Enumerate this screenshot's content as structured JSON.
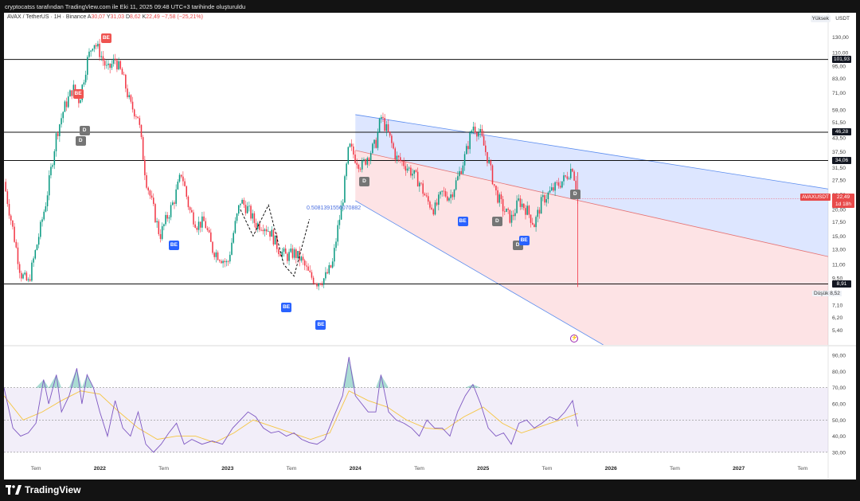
{
  "header": {
    "attribution": "cryptocatss tarafından TradingView.com ile Eki 11, 2025 09:48 UTC+3 tarihinde oluşturuldu"
  },
  "legend": {
    "symbol": "AVAX / TetherUS · 1H · Binance",
    "open_label": "A",
    "open": "30,07",
    "high_label": "Y",
    "high": "31,03",
    "low_label": "D",
    "low": "8,62",
    "close_label": "K",
    "close": "22,49",
    "change": "−7,58 (−25,21%)"
  },
  "corner": {
    "scale_mode": "Yüksek",
    "currency": "USDT"
  },
  "price_tags": {
    "symbol_tag": "AVAXUSDT",
    "last_price": "22,49",
    "countdown": "1d 18h",
    "low_label": "Düşük",
    "low_value": "8,52"
  },
  "levels": [
    {
      "label": "101,93",
      "value": 101.93
    },
    {
      "label": "46,28",
      "value": 46.28
    },
    {
      "label": "34,06",
      "value": 34.06
    },
    {
      "label": "8,91",
      "value": 8.91
    }
  ],
  "fib_label": "0.5081391556070882",
  "markers": [
    {
      "text": "BE",
      "kind": "sell",
      "t": 2021.83,
      "price": 70
    },
    {
      "text": "BE",
      "kind": "sell",
      "t": 2022.05,
      "price": 128
    },
    {
      "text": "D",
      "kind": "d",
      "t": 2021.88,
      "price": 47
    },
    {
      "text": "D",
      "kind": "d",
      "t": 2021.85,
      "price": 42
    },
    {
      "text": "BE",
      "kind": "buy",
      "t": 2022.58,
      "price": 13.5
    },
    {
      "text": "BE",
      "kind": "buy",
      "t": 2023.46,
      "price": 6.9
    },
    {
      "text": "BE",
      "kind": "buy",
      "t": 2023.73,
      "price": 5.7
    },
    {
      "text": "D",
      "kind": "d",
      "t": 2024.07,
      "price": 27
    },
    {
      "text": "BE",
      "kind": "buy",
      "t": 2024.84,
      "price": 17.5
    },
    {
      "text": "D",
      "kind": "d",
      "t": 2025.11,
      "price": 17.5
    },
    {
      "text": "D",
      "kind": "d",
      "t": 2025.27,
      "price": 13.5
    },
    {
      "text": "BE",
      "kind": "buy",
      "t": 2025.32,
      "price": 14.3
    },
    {
      "text": "D",
      "kind": "d",
      "t": 2025.72,
      "price": 23.5
    }
  ],
  "chart_data": [
    {
      "type": "candlestick",
      "title": "AVAX / TetherUS · 1H · Binance",
      "yscale": "log",
      "ylim": [
        4.6,
        150
      ],
      "xlim": [
        2021.25,
        2027.7
      ],
      "x_ticks": [
        {
          "t": 2021.5,
          "label": "Tem"
        },
        {
          "t": 2022.0,
          "label": "2022"
        },
        {
          "t": 2022.5,
          "label": "Tem"
        },
        {
          "t": 2023.0,
          "label": "2023"
        },
        {
          "t": 2023.5,
          "label": "Tem"
        },
        {
          "t": 2024.0,
          "label": "2024"
        },
        {
          "t": 2024.5,
          "label": "Tem"
        },
        {
          "t": 2025.0,
          "label": "2025"
        },
        {
          "t": 2025.5,
          "label": "Tem"
        },
        {
          "t": 2026.0,
          "label": "2026"
        },
        {
          "t": 2026.5,
          "label": "Tem"
        },
        {
          "t": 2027.0,
          "label": "2027"
        },
        {
          "t": 2027.5,
          "label": "Tem"
        }
      ],
      "y_ticks": [
        "130,00",
        "110,00",
        "95,00",
        "83,00",
        "71,00",
        "59,00",
        "51,50",
        "43,50",
        "37,50",
        "31,50",
        "27,50",
        "23,50",
        "20,00",
        "17,50",
        "15,00",
        "13,00",
        "11,00",
        "9,50",
        "7,10",
        "6,20",
        "5,40"
      ],
      "close_path": [
        [
          2021.25,
          27
        ],
        [
          2021.32,
          16
        ],
        [
          2021.38,
          10
        ],
        [
          2021.44,
          9
        ],
        [
          2021.5,
          13
        ],
        [
          2021.58,
          22
        ],
        [
          2021.66,
          45
        ],
        [
          2021.72,
          60
        ],
        [
          2021.79,
          75
        ],
        [
          2021.84,
          65
        ],
        [
          2021.9,
          100
        ],
        [
          2021.95,
          125
        ],
        [
          2022.0,
          110
        ],
        [
          2022.06,
          90
        ],
        [
          2022.12,
          102
        ],
        [
          2022.18,
          85
        ],
        [
          2022.24,
          62
        ],
        [
          2022.3,
          55
        ],
        [
          2022.36,
          28
        ],
        [
          2022.42,
          20
        ],
        [
          2022.47,
          15
        ],
        [
          2022.52,
          18
        ],
        [
          2022.58,
          22
        ],
        [
          2022.64,
          30
        ],
        [
          2022.7,
          20
        ],
        [
          2022.76,
          17
        ],
        [
          2022.82,
          17.5
        ],
        [
          2022.88,
          13
        ],
        [
          2022.94,
          12
        ],
        [
          2023.0,
          11
        ],
        [
          2023.05,
          16
        ],
        [
          2023.1,
          22
        ],
        [
          2023.16,
          20
        ],
        [
          2023.22,
          17
        ],
        [
          2023.28,
          17
        ],
        [
          2023.34,
          15.5
        ],
        [
          2023.4,
          13
        ],
        [
          2023.46,
          12
        ],
        [
          2023.52,
          12.5
        ],
        [
          2023.58,
          11.5
        ],
        [
          2023.64,
          9.8
        ],
        [
          2023.7,
          9.1
        ],
        [
          2023.76,
          9.5
        ],
        [
          2023.82,
          11
        ],
        [
          2023.86,
          16
        ],
        [
          2023.9,
          22
        ],
        [
          2023.95,
          40
        ],
        [
          2024.0,
          35
        ],
        [
          2024.05,
          32
        ],
        [
          2024.1,
          36
        ],
        [
          2024.16,
          41
        ],
        [
          2024.2,
          55
        ],
        [
          2024.26,
          45
        ],
        [
          2024.32,
          35
        ],
        [
          2024.38,
          33
        ],
        [
          2024.44,
          30
        ],
        [
          2024.5,
          27
        ],
        [
          2024.56,
          22
        ],
        [
          2024.62,
          20
        ],
        [
          2024.68,
          24
        ],
        [
          2024.74,
          23
        ],
        [
          2024.8,
          28
        ],
        [
          2024.86,
          36
        ],
        [
          2024.92,
          50
        ],
        [
          2024.98,
          45
        ],
        [
          2025.04,
          34
        ],
        [
          2025.1,
          24
        ],
        [
          2025.16,
          20
        ],
        [
          2025.22,
          18
        ],
        [
          2025.28,
          22
        ],
        [
          2025.34,
          20
        ],
        [
          2025.4,
          17
        ],
        [
          2025.46,
          22
        ],
        [
          2025.52,
          24
        ],
        [
          2025.58,
          26
        ],
        [
          2025.64,
          28
        ],
        [
          2025.7,
          32
        ],
        [
          2025.74,
          22.5
        ]
      ],
      "crash_wick": {
        "t": 2025.74,
        "low": 8.62
      },
      "channel": {
        "upper": {
          "t1": 2024.0,
          "p1": 56,
          "t2": 2027.7,
          "p2": 25
        },
        "mid": {
          "t1": 2024.0,
          "p1": 38,
          "t2": 2027.7,
          "p2": 12
        },
        "lower": {
          "t1": 2024.0,
          "p1": 22,
          "t2": 2025.94,
          "p2": 4.6
        }
      },
      "zigzag_pattern": [
        [
          2023.1,
          20
        ],
        [
          2023.2,
          15
        ],
        [
          2023.32,
          21
        ],
        [
          2023.44,
          11
        ],
        [
          2023.52,
          9.7
        ],
        [
          2023.64,
          18
        ]
      ]
    },
    {
      "type": "line",
      "ylim": [
        25,
        95
      ],
      "y_ticks": [
        "90,00",
        "80,00",
        "70,00",
        "60,00",
        "50,00",
        "40,00",
        "30,00"
      ],
      "band": [
        30,
        70
      ],
      "series": [
        {
          "role": "rsi",
          "points": [
            [
              2021.25,
              70
            ],
            [
              2021.32,
              45
            ],
            [
              2021.38,
              40
            ],
            [
              2021.44,
              42
            ],
            [
              2021.5,
              48
            ],
            [
              2021.56,
              75
            ],
            [
              2021.6,
              60
            ],
            [
              2021.66,
              78
            ],
            [
              2021.7,
              55
            ],
            [
              2021.76,
              65
            ],
            [
              2021.82,
              82
            ],
            [
              2021.86,
              60
            ],
            [
              2021.9,
              78
            ],
            [
              2021.95,
              70
            ],
            [
              2022.0,
              55
            ],
            [
              2022.06,
              40
            ],
            [
              2022.12,
              62
            ],
            [
              2022.18,
              45
            ],
            [
              2022.24,
              40
            ],
            [
              2022.3,
              55
            ],
            [
              2022.36,
              35
            ],
            [
              2022.42,
              30
            ],
            [
              2022.48,
              35
            ],
            [
              2022.54,
              42
            ],
            [
              2022.6,
              48
            ],
            [
              2022.66,
              35
            ],
            [
              2022.72,
              38
            ],
            [
              2022.8,
              35
            ],
            [
              2022.88,
              37
            ],
            [
              2022.96,
              35
            ],
            [
              2023.04,
              45
            ],
            [
              2023.1,
              50
            ],
            [
              2023.16,
              55
            ],
            [
              2023.22,
              52
            ],
            [
              2023.28,
              45
            ],
            [
              2023.34,
              42
            ],
            [
              2023.4,
              43
            ],
            [
              2023.46,
              40
            ],
            [
              2023.52,
              42
            ],
            [
              2023.58,
              38
            ],
            [
              2023.64,
              36
            ],
            [
              2023.7,
              35
            ],
            [
              2023.76,
              38
            ],
            [
              2023.82,
              50
            ],
            [
              2023.9,
              65
            ],
            [
              2023.95,
              89
            ],
            [
              2024.0,
              65
            ],
            [
              2024.05,
              60
            ],
            [
              2024.1,
              55
            ],
            [
              2024.16,
              55
            ],
            [
              2024.2,
              78
            ],
            [
              2024.26,
              55
            ],
            [
              2024.32,
              50
            ],
            [
              2024.38,
              48
            ],
            [
              2024.44,
              45
            ],
            [
              2024.5,
              40
            ],
            [
              2024.56,
              50
            ],
            [
              2024.62,
              45
            ],
            [
              2024.68,
              45
            ],
            [
              2024.74,
              40
            ],
            [
              2024.8,
              55
            ],
            [
              2024.86,
              65
            ],
            [
              2024.92,
              72
            ],
            [
              2024.98,
              60
            ],
            [
              2025.04,
              45
            ],
            [
              2025.1,
              40
            ],
            [
              2025.16,
              42
            ],
            [
              2025.22,
              35
            ],
            [
              2025.28,
              48
            ],
            [
              2025.34,
              50
            ],
            [
              2025.4,
              45
            ],
            [
              2025.46,
              48
            ],
            [
              2025.52,
              52
            ],
            [
              2025.58,
              50
            ],
            [
              2025.64,
              55
            ],
            [
              2025.7,
              62
            ],
            [
              2025.74,
              46
            ]
          ]
        },
        {
          "role": "rsi-ma",
          "points": [
            [
              2021.25,
              65
            ],
            [
              2021.4,
              50
            ],
            [
              2021.55,
              55
            ],
            [
              2021.7,
              62
            ],
            [
              2021.85,
              68
            ],
            [
              2022.0,
              66
            ],
            [
              2022.15,
              55
            ],
            [
              2022.3,
              45
            ],
            [
              2022.45,
              38
            ],
            [
              2022.6,
              40
            ],
            [
              2022.75,
              40
            ],
            [
              2022.9,
              36
            ],
            [
              2023.05,
              42
            ],
            [
              2023.2,
              50
            ],
            [
              2023.35,
              46
            ],
            [
              2023.5,
              42
            ],
            [
              2023.65,
              38
            ],
            [
              2023.8,
              42
            ],
            [
              2023.95,
              68
            ],
            [
              2024.1,
              62
            ],
            [
              2024.25,
              58
            ],
            [
              2024.4,
              50
            ],
            [
              2024.55,
              45
            ],
            [
              2024.7,
              44
            ],
            [
              2024.85,
              52
            ],
            [
              2025.0,
              58
            ],
            [
              2025.15,
              48
            ],
            [
              2025.3,
              42
            ],
            [
              2025.45,
              46
            ],
            [
              2025.6,
              50
            ],
            [
              2025.74,
              54
            ]
          ]
        }
      ]
    }
  ]
}
